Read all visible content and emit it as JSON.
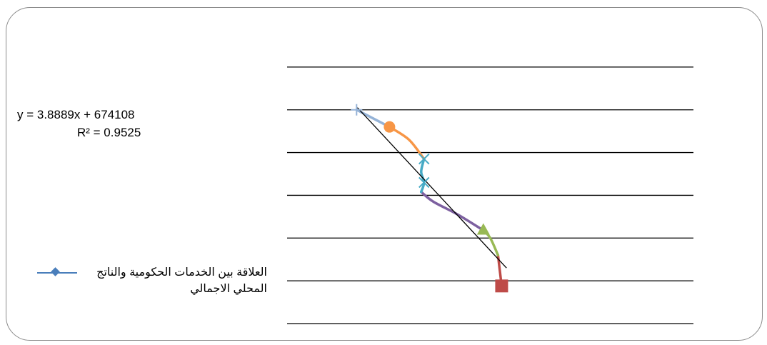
{
  "chart_data": {
    "type": "line",
    "title": "",
    "xlabel": "",
    "ylabel": "",
    "xlim": [
      0,
      1000
    ],
    "ylim": [
      0,
      7
    ],
    "grid": true,
    "series": [
      {
        "name": "العلاقة بين الخدمات الحكومية والناتج المحلي الاجمالي",
        "color": "#4a7ebb",
        "marker": "diamond",
        "x": [
          528
        ],
        "y": [
          0.88
        ]
      },
      {
        "color": "#be4b48",
        "marker": "square",
        "x": [
          519,
          528
        ],
        "y": [
          1.6,
          0.88
        ]
      },
      {
        "color": "#98b954",
        "marker": "triangle",
        "x": [
          483,
          500,
          519
        ],
        "y": [
          2.18,
          2.0,
          1.6
        ]
      },
      {
        "color": "#7d60a0",
        "marker": "none",
        "x": [
          330,
          360,
          420,
          483
        ],
        "y": [
          3.08,
          2.85,
          2.55,
          2.18
        ]
      },
      {
        "color": "#46aac5",
        "marker": "x",
        "x": [
          337,
          330,
          337,
          330
        ],
        "y": [
          3.85,
          3.55,
          3.3,
          3.08
        ]
      },
      {
        "color": "#f79646",
        "marker": "circle",
        "x": [
          252,
          300,
          337
        ],
        "y": [
          4.6,
          4.3,
          3.85
        ]
      },
      {
        "color": "#95b3d7",
        "marker": "plus",
        "x": [
          171,
          252
        ],
        "y": [
          5.0,
          4.6
        ]
      }
    ],
    "trendline": {
      "x": [
        173,
        540
      ],
      "y": [
        5.05,
        1.3
      ]
    },
    "trend_equation": "y = 3.8889x + 674108",
    "r_squared": "R² = 0.9525"
  },
  "legend": {
    "entry": "العلاقة بين الخدمات الحكومية والناتج المحلي الاجمالي",
    "line_color": "#4a7ebb",
    "marker": "diamond-icon"
  }
}
